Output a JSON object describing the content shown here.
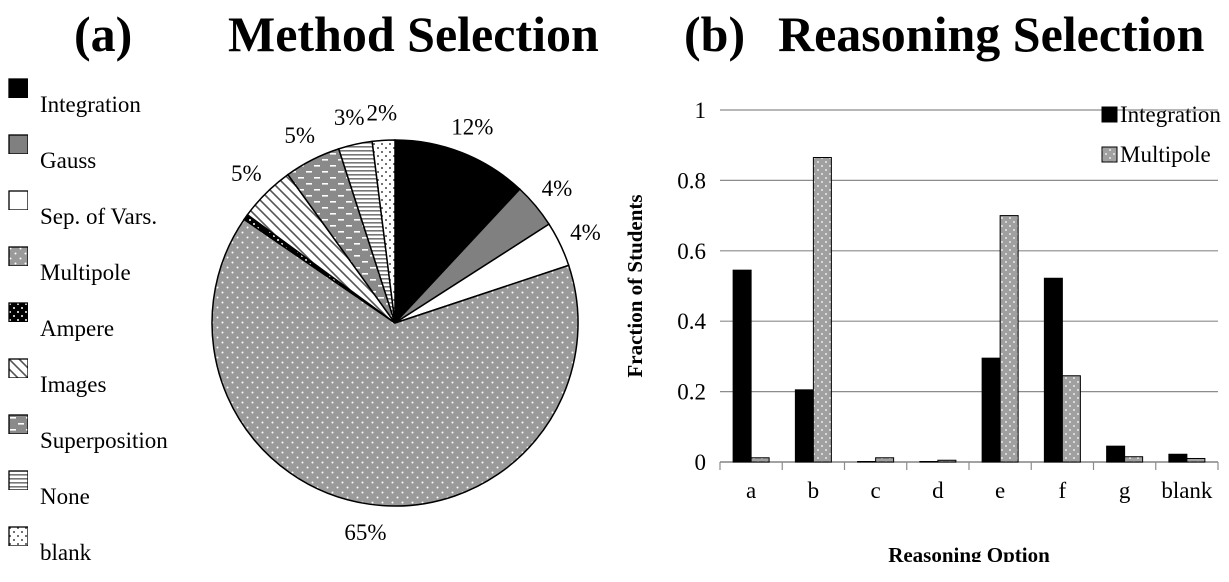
{
  "titles": {
    "a_label": "(a)",
    "a_text": "Method Selection",
    "b_label": "(b)",
    "b_text": "Reasoning Selection"
  },
  "chart_data": [
    {
      "type": "pie",
      "title": "Method Selection",
      "slices": [
        {
          "label": "Integration",
          "value": 12,
          "display": "12%",
          "fill": "#000000",
          "pattern": "solid"
        },
        {
          "label": "Gauss",
          "value": 4,
          "display": "4%",
          "fill": "#808080",
          "pattern": "solid"
        },
        {
          "label": "Sep. of Vars.",
          "value": 4,
          "display": "4%",
          "fill": "#ffffff",
          "pattern": "solid"
        },
        {
          "label": "Multipole",
          "value": 65,
          "display": "65%",
          "fill": "#9a9a9a",
          "pattern": "dots"
        },
        {
          "label": "Ampere",
          "value": 0.5,
          "display": "",
          "fill": "#000000",
          "pattern": "dots-black"
        },
        {
          "label": "Images",
          "value": 5,
          "display": "5%",
          "fill": "#ffffff",
          "pattern": "diagonal"
        },
        {
          "label": "Superposition",
          "value": 5,
          "display": "5%",
          "fill": "#8a8a8a",
          "pattern": "dashes"
        },
        {
          "label": "None",
          "value": 3,
          "display": "3%",
          "fill": "#ffffff",
          "pattern": "horizontal"
        },
        {
          "label": "blank",
          "value": 2,
          "display": "2%",
          "fill": "#ffffff",
          "pattern": "sparse-dots"
        }
      ],
      "legend_position": "left"
    },
    {
      "type": "bar",
      "title": "Reasoning Selection",
      "categories": [
        "a",
        "b",
        "c",
        "d",
        "e",
        "f",
        "g",
        "blank"
      ],
      "series": [
        {
          "name": "Integration",
          "values": [
            0.545,
            0.205,
            0.0,
            0.0,
            0.295,
            0.522,
            0.045,
            0.022
          ],
          "color": "#000000"
        },
        {
          "name": "Multipole",
          "values": [
            0.012,
            0.865,
            0.012,
            0.005,
            0.7,
            0.245,
            0.015,
            0.01
          ],
          "color": "#a0a0a0"
        }
      ],
      "xlabel": "Reasoning Option",
      "ylabel": "Fraction of Students",
      "ylim": [
        0,
        1
      ],
      "yticks": [
        0,
        0.2,
        0.4,
        0.6,
        0.8,
        1
      ],
      "ytick_labels": [
        "0",
        "0.2",
        "0.4",
        "0.6",
        "0.8",
        "1"
      ],
      "grid": true,
      "legend_position": "top-right"
    }
  ]
}
